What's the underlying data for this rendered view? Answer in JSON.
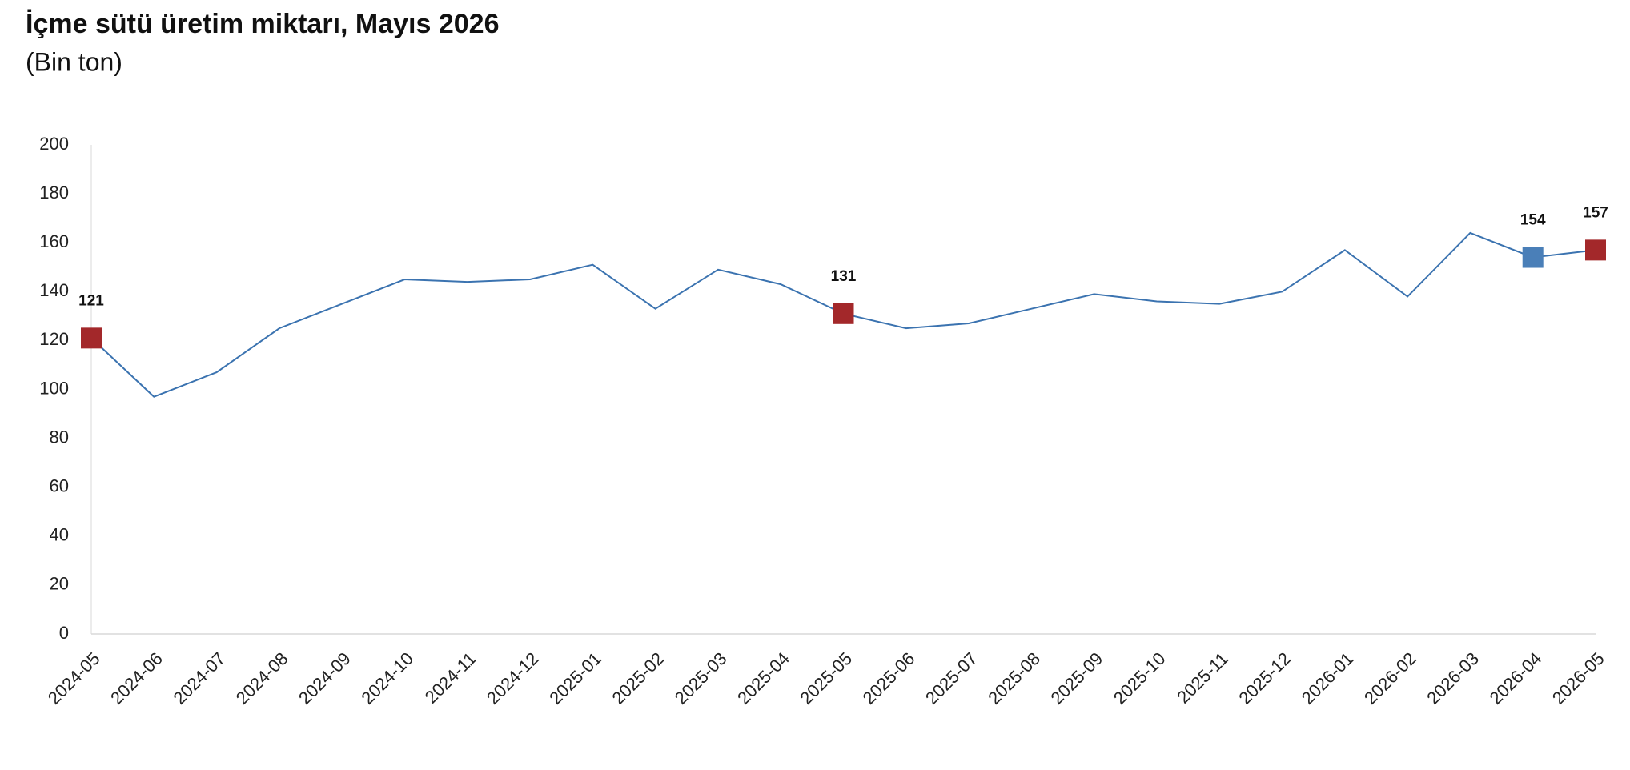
{
  "chart_data": {
    "type": "line",
    "title": "İçme sütü üretim miktarı, Mayıs 2026",
    "subtitle": "(Bin ton)",
    "categories": [
      "2024-05",
      "2024-06",
      "2024-07",
      "2024-08",
      "2024-09",
      "2024-10",
      "2024-11",
      "2024-12",
      "2025-01",
      "2025-02",
      "2025-03",
      "2025-04",
      "2025-05",
      "2025-06",
      "2025-07",
      "2025-08",
      "2025-09",
      "2025-10",
      "2025-11",
      "2025-12",
      "2026-01",
      "2026-02",
      "2026-03",
      "2026-04",
      "2026-05"
    ],
    "values": [
      121,
      97,
      107,
      125,
      135,
      145,
      144,
      145,
      151,
      133,
      149,
      143,
      131,
      125,
      127,
      133,
      139,
      136,
      135,
      140,
      157,
      138,
      164,
      154,
      157
    ],
    "color": "#3b73b0",
    "highlight_points": [
      {
        "index": 0,
        "color": "#a3282a"
      },
      {
        "index": 12,
        "color": "#a3282a"
      },
      {
        "index": 23,
        "color": "#4a7fb8"
      },
      {
        "index": 24,
        "color": "#a3282a"
      }
    ],
    "ylim": [
      0,
      200
    ],
    "yticks": [
      0,
      20,
      40,
      60,
      80,
      100,
      120,
      140,
      160,
      180,
      200
    ],
    "grid": false
  }
}
